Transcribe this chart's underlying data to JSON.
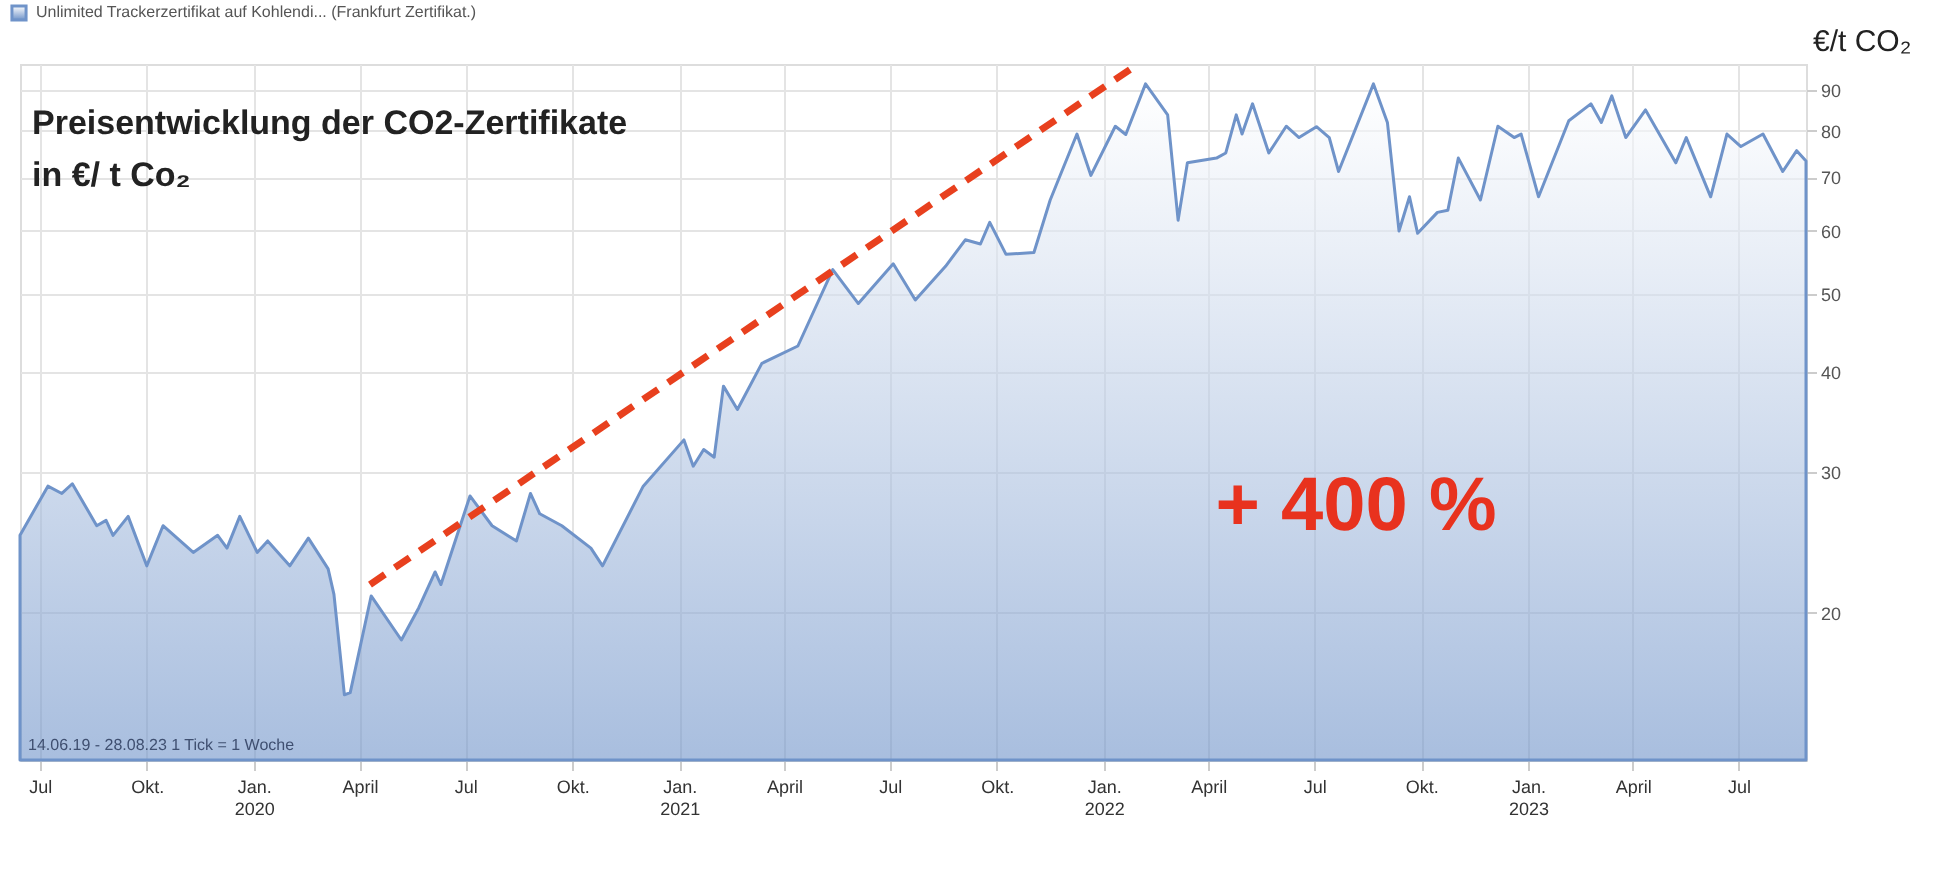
{
  "chart_data": {
    "type": "area",
    "title": "Preisentwicklung der CO2-Zertifikate",
    "subtitle": "in €/ t Co₂",
    "ylabel": "€/t CO₂",
    "annotations": [
      "+ 400 %",
      "14.06.19 - 28.08.23  1 Tick = 1 Woche"
    ],
    "log": "y",
    "grid": true,
    "legend": "top left",
    "xlim": [
      "2019-06-14",
      "2023-08-28"
    ],
    "ylim": [
      13.1,
      97
    ],
    "yticks": [
      20,
      30,
      40,
      50,
      60,
      70,
      80,
      90
    ],
    "xticks": [
      {
        "value": "2019-07-01",
        "label": "Jul"
      },
      {
        "value": "2019-10-01",
        "label": "Okt."
      },
      {
        "value": "2020-01-01",
        "label": "Jan.\n2020"
      },
      {
        "value": "2020-04-01",
        "label": "April"
      },
      {
        "value": "2020-07-01",
        "label": "Jul"
      },
      {
        "value": "2020-10-01",
        "label": "Okt."
      },
      {
        "value": "2021-01-01",
        "label": "Jan.\n2021"
      },
      {
        "value": "2021-04-01",
        "label": "April"
      },
      {
        "value": "2021-07-01",
        "label": "Jul"
      },
      {
        "value": "2021-10-01",
        "label": "Okt."
      },
      {
        "value": "2022-01-01",
        "label": "Jan.\n2022"
      },
      {
        "value": "2022-04-01",
        "label": "April"
      },
      {
        "value": "2022-07-01",
        "label": "Jul"
      },
      {
        "value": "2022-10-01",
        "label": "Okt."
      },
      {
        "value": "2023-01-01",
        "label": "Jan.\n2023"
      },
      {
        "value": "2023-04-01",
        "label": "April"
      },
      {
        "value": "2023-07-01",
        "label": "Jul"
      }
    ],
    "series": [
      {
        "name": "Unlimited Trackerzertifikat auf Kohlendi... (Frankfurt Zertifikat.)",
        "color": "#6f93c9",
        "x": [
          "2019-06-14",
          "2019-07-08",
          "2019-07-20",
          "2019-07-29",
          "2019-08-19",
          "2019-08-27",
          "2019-09-02",
          "2019-09-15",
          "2019-10-01",
          "2019-10-15",
          "2019-11-10",
          "2019-12-01",
          "2019-12-09",
          "2019-12-20",
          "2020-01-04",
          "2020-01-13",
          "2020-02-01",
          "2020-02-17",
          "2020-03-05",
          "2020-03-10",
          "2020-03-19",
          "2020-03-24",
          "2020-04-11",
          "2020-05-07",
          "2020-05-22",
          "2020-06-05",
          "2020-06-10",
          "2020-07-05",
          "2020-07-24",
          "2020-08-14",
          "2020-08-26",
          "2020-09-03",
          "2020-09-22",
          "2020-10-17",
          "2020-10-27",
          "2020-12-01",
          "2021-01-05",
          "2021-01-13",
          "2021-01-22",
          "2021-01-31",
          "2021-02-08",
          "2021-02-20",
          "2021-03-13",
          "2021-04-13",
          "2021-05-13",
          "2021-06-04",
          "2021-07-04",
          "2021-07-23",
          "2021-08-18",
          "2021-09-04",
          "2021-09-17",
          "2021-09-25",
          "2021-10-09",
          "2021-11-02",
          "2021-11-16",
          "2021-12-09",
          "2021-12-21",
          "2022-01-11",
          "2022-01-20",
          "2022-02-06",
          "2022-02-25",
          "2022-03-06",
          "2022-03-14",
          "2022-04-08",
          "2022-04-16",
          "2022-04-25",
          "2022-04-30",
          "2022-05-09",
          "2022-05-23",
          "2022-06-07",
          "2022-06-18",
          "2022-07-03",
          "2022-07-14",
          "2022-07-22",
          "2022-08-21",
          "2022-09-02",
          "2022-09-12",
          "2022-09-21",
          "2022-09-28",
          "2022-10-15",
          "2022-10-24",
          "2022-11-02",
          "2022-11-21",
          "2022-12-06",
          "2022-12-20",
          "2022-12-26",
          "2023-01-10",
          "2023-02-05",
          "2023-02-24",
          "2023-03-05",
          "2023-03-14",
          "2023-03-26",
          "2023-04-12",
          "2023-05-08",
          "2023-05-17",
          "2023-06-07",
          "2023-06-21",
          "2023-07-03",
          "2023-07-22",
          "2023-08-08",
          "2023-08-20",
          "2023-08-28"
        ],
        "values": [
          25.0,
          28.8,
          28.2,
          29.0,
          25.7,
          26.1,
          25.0,
          26.4,
          22.9,
          25.7,
          23.8,
          25.0,
          24.1,
          26.4,
          23.8,
          24.6,
          22.9,
          24.8,
          22.7,
          21.1,
          15.8,
          15.9,
          21.0,
          18.5,
          20.3,
          22.5,
          21.7,
          28.0,
          25.7,
          24.6,
          28.2,
          26.6,
          25.7,
          24.1,
          22.9,
          28.8,
          32.9,
          30.5,
          32.0,
          31.3,
          38.4,
          35.9,
          41.0,
          43.1,
          53.7,
          48.7,
          54.6,
          49.2,
          54.2,
          58.5,
          57.8,
          61.5,
          56.1,
          56.4,
          65.6,
          79.3,
          70.4,
          81.1,
          79.2,
          91.6,
          83.8,
          61.9,
          73.0,
          74.0,
          75.1,
          83.8,
          79.3,
          86.5,
          75.1,
          81.1,
          78.5,
          81.0,
          78.5,
          71.2,
          91.6,
          82.0,
          60.0,
          66.2,
          59.6,
          63.3,
          63.7,
          74.0,
          65.6,
          81.1,
          78.5,
          79.3,
          66.2,
          82.4,
          86.5,
          82.0,
          88.5,
          78.5,
          85.0,
          73.0,
          78.5,
          66.2,
          79.3,
          76.5,
          79.3,
          71.2,
          75.6,
          73.4
        ]
      },
      {
        "type": "line",
        "color": "#e8401e",
        "line_style": "dashed",
        "x": [
          "2020-04-10",
          "2022-01-26"
        ],
        "values": [
          21.7,
          96
        ]
      }
    ]
  }
}
